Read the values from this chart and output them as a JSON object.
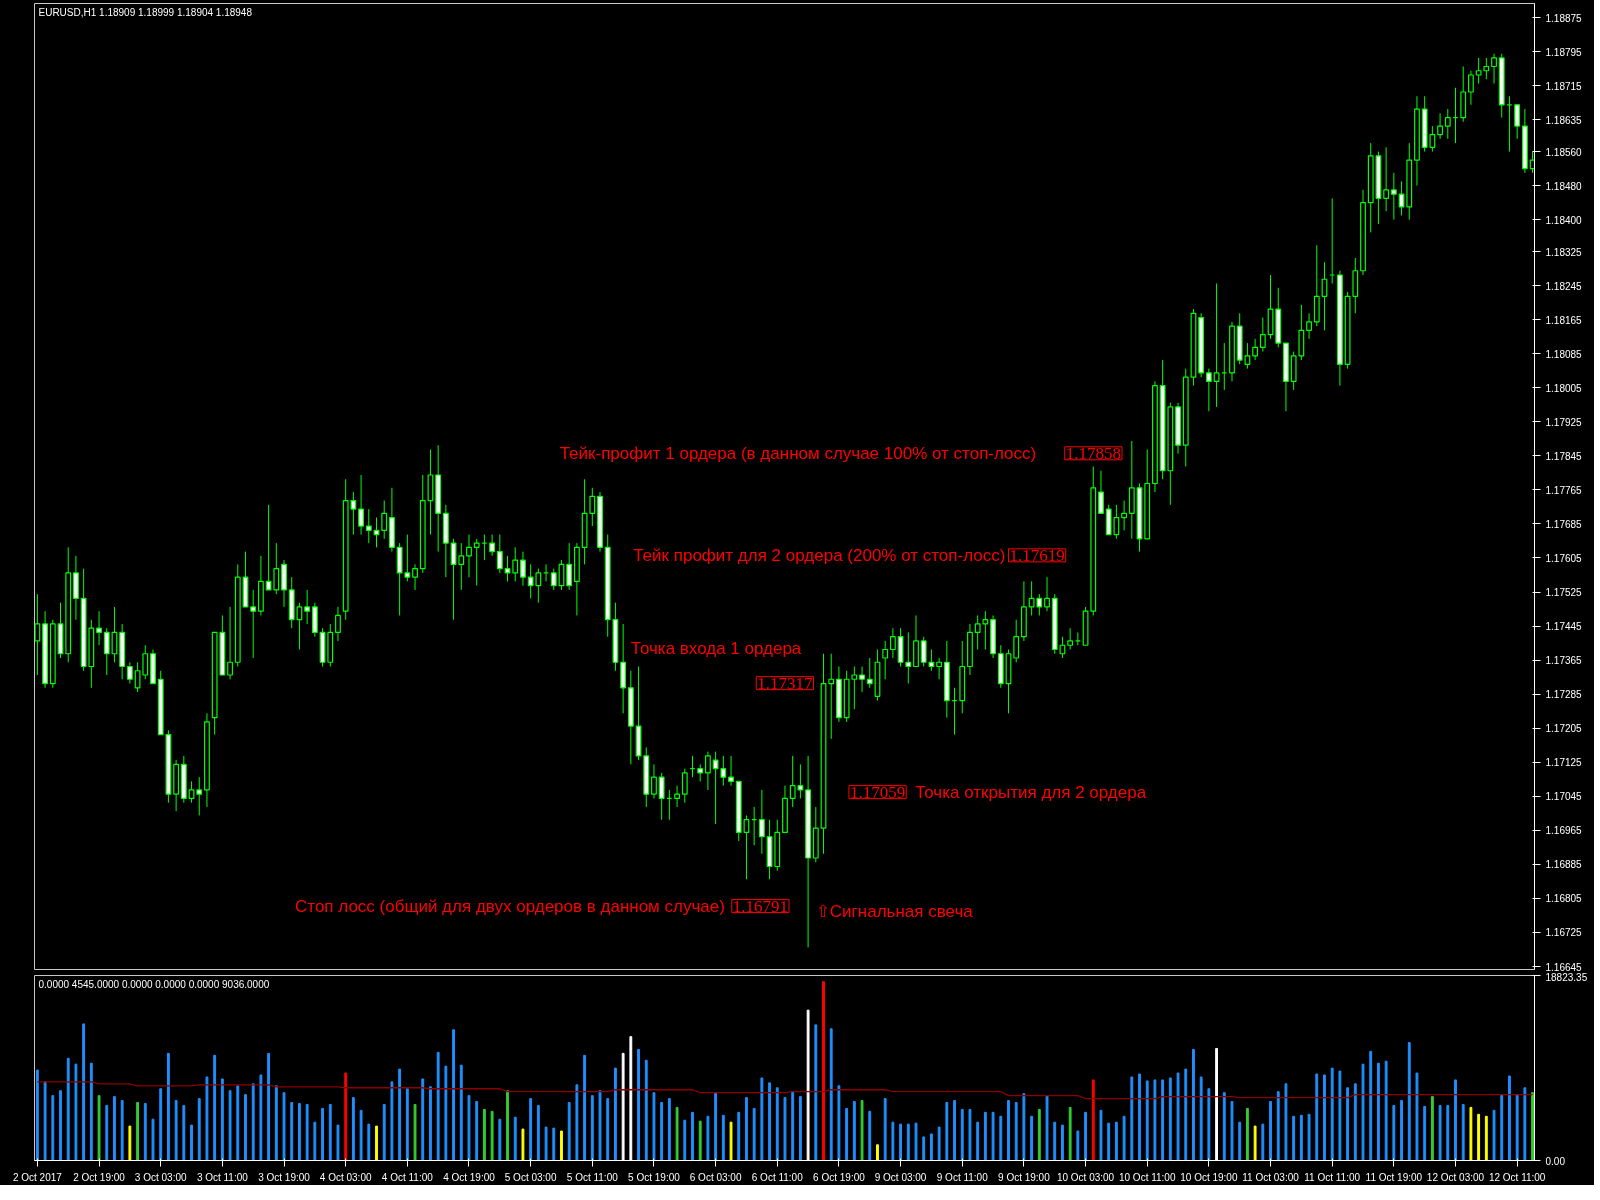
{
  "chart_data": [
    {
      "type": "candlestick",
      "title": "EURUSD,H1  1.18909 1.18999 1.18904 1.18948",
      "color": "#00ff00",
      "tick_labels": "y",
      "grid": false,
      "categories": [
        null,
        null,
        null,
        null,
        null,
        null,
        null,
        null,
        null,
        null,
        null,
        null,
        null,
        null,
        null,
        null,
        null,
        null,
        null,
        null,
        null,
        null,
        null,
        null,
        null,
        null,
        null,
        null,
        null,
        null,
        null,
        null,
        null,
        null,
        null,
        null,
        null,
        null,
        null,
        null,
        null,
        null,
        null,
        null,
        null,
        null,
        null,
        null,
        null,
        null,
        null,
        null,
        null,
        null,
        null,
        null,
        null,
        null,
        null,
        null,
        null,
        null,
        null,
        null,
        null,
        null,
        null,
        null,
        null,
        null,
        null,
        null,
        null,
        null,
        null,
        null,
        null,
        null,
        null,
        null,
        null,
        null,
        null,
        null,
        null,
        null,
        null,
        null,
        null,
        null,
        null,
        null,
        null,
        null,
        null,
        null,
        null,
        null,
        null,
        null,
        null,
        null,
        null,
        null,
        null,
        null,
        null,
        null,
        null,
        null,
        null,
        null,
        null,
        null,
        null,
        null,
        null,
        null,
        null,
        null,
        null,
        null,
        null,
        null,
        null,
        null,
        null,
        null,
        null,
        null,
        null,
        null,
        null,
        null,
        null,
        null,
        null,
        null,
        null,
        null,
        null,
        null,
        null,
        null,
        null,
        null,
        null,
        null,
        null,
        null,
        null,
        null,
        null,
        null,
        null,
        null,
        null,
        null,
        null,
        null,
        null,
        null,
        null,
        null,
        null,
        null,
        null,
        null,
        null,
        null,
        null,
        null,
        null,
        null,
        null,
        null,
        null,
        null,
        null,
        null,
        null,
        null,
        null,
        null,
        null,
        null,
        null,
        null,
        null,
        null,
        null,
        null,
        null,
        null,
        null
      ],
      "ylim": [
        1.16638,
        1.18908
      ],
      "yticks": [
        1.18875,
        1.18795,
        1.18715,
        1.18635,
        {
          "value": 1.1856,
          "label": "1.18560"
        },
        {
          "value": 1.1848,
          "label": "1.18480"
        },
        {
          "value": 1.184,
          "label": "1.18400"
        },
        1.18325,
        1.18245,
        1.18165,
        1.18085,
        1.18005,
        1.17925,
        1.17845,
        1.17765,
        1.17685,
        1.17605,
        1.17525,
        1.17445,
        1.17365,
        1.17285,
        1.17205,
        1.17125,
        1.17045,
        1.16965,
        1.16885,
        1.16805,
        1.16725,
        1.16645
      ],
      "ohlc": [
        [
          1.1741,
          1.1752,
          1.1733,
          1.1745
        ],
        [
          1.1745,
          1.1748,
          1.173,
          1.1731
        ],
        [
          1.1731,
          1.1746,
          1.173,
          1.1745
        ],
        [
          1.1745,
          1.175,
          1.1737,
          1.1738
        ],
        [
          1.1738,
          1.1763,
          1.1736,
          1.1757
        ],
        [
          1.1757,
          1.1761,
          1.1746,
          1.1751
        ],
        [
          1.1751,
          1.1758,
          1.1734,
          1.1735
        ],
        [
          1.1735,
          1.1746,
          1.173,
          1.1744
        ],
        [
          1.1744,
          1.1748,
          1.174,
          1.1743
        ],
        [
          1.1743,
          1.1744,
          1.1733,
          1.1738
        ],
        [
          1.1738,
          1.1749,
          1.1736,
          1.1743
        ],
        [
          1.1743,
          1.1745,
          1.1732,
          1.1735
        ],
        [
          1.1735,
          1.1736,
          1.1731,
          1.1732
        ],
        [
          1.173,
          1.1736,
          1.1729,
          1.1734
        ],
        [
          1.1733,
          1.174,
          1.1732,
          1.1738
        ],
        [
          1.1738,
          1.1739,
          1.1731,
          1.1731
        ],
        [
          1.1732,
          1.1734,
          1.1719,
          1.1719
        ],
        [
          1.1719,
          1.172,
          1.1703,
          1.1705
        ],
        [
          1.1705,
          1.1713,
          1.1701,
          1.1712
        ],
        [
          1.1712,
          1.1714,
          1.1703,
          1.1704
        ],
        [
          1.1704,
          1.1708,
          1.1703,
          1.1706
        ],
        [
          1.1706,
          1.1709,
          1.17,
          1.1705
        ],
        [
          1.1706,
          1.1724,
          1.1702,
          1.1722
        ],
        [
          1.1723,
          1.1743,
          1.1719,
          1.1743
        ],
        [
          1.1743,
          1.1747,
          1.1733,
          1.1733
        ],
        [
          1.1733,
          1.1749,
          1.1732,
          1.1736
        ],
        [
          1.1736,
          1.1759,
          1.1735,
          1.1756
        ],
        [
          1.1756,
          1.1762,
          1.1749,
          1.1749
        ],
        [
          1.1749,
          1.1753,
          1.1737,
          1.1748
        ],
        [
          1.1748,
          1.1761,
          1.1747,
          1.1755
        ],
        [
          1.1755,
          1.1773,
          1.1753,
          1.1753
        ],
        [
          1.1753,
          1.1764,
          1.1752,
          1.1758
        ],
        [
          1.1759,
          1.176,
          1.1749,
          1.1753
        ],
        [
          1.1753,
          1.1756,
          1.1744,
          1.1746
        ],
        [
          1.1746,
          1.175,
          1.1739,
          1.1749
        ],
        [
          1.1749,
          1.1753,
          1.1745,
          1.1748
        ],
        [
          1.1749,
          1.175,
          1.1742,
          1.1743
        ],
        [
          1.1743,
          1.1744,
          1.1735,
          1.1736
        ],
        [
          1.1736,
          1.1745,
          1.1735,
          1.1743
        ],
        [
          1.1743,
          1.1749,
          1.1741,
          1.1747
        ],
        [
          1.1748,
          1.1779,
          1.1746,
          1.1774
        ],
        [
          1.1774,
          1.1776,
          1.1766,
          1.1772
        ],
        [
          1.1772,
          1.178,
          1.1766,
          1.1768
        ],
        [
          1.1768,
          1.1772,
          1.1764,
          1.1767
        ],
        [
          1.1767,
          1.177,
          1.1763,
          1.1766
        ],
        [
          1.1767,
          1.1774,
          1.1765,
          1.1771
        ],
        [
          1.177,
          1.1777,
          1.1762,
          1.1763
        ],
        [
          1.1763,
          1.1764,
          1.1747,
          1.1757
        ],
        [
          1.1757,
          1.1766,
          1.1755,
          1.1756
        ],
        [
          1.1756,
          1.1759,
          1.1753,
          1.1758
        ],
        [
          1.1758,
          1.178,
          1.1757,
          1.1774
        ],
        [
          1.1774,
          1.1786,
          1.1766,
          1.178
        ],
        [
          1.178,
          1.1787,
          1.1762,
          1.1771
        ],
        [
          1.1771,
          1.1773,
          1.1756,
          1.1764
        ],
        [
          1.1764,
          1.1765,
          1.1746,
          1.1759
        ],
        [
          1.1759,
          1.1764,
          1.1753,
          1.1761
        ],
        [
          1.1761,
          1.1766,
          1.1756,
          1.1763
        ],
        [
          1.1763,
          1.1765,
          1.1754,
          1.1764
        ],
        [
          1.1764,
          1.1766,
          1.176,
          1.1764
        ],
        [
          1.1764,
          1.1766,
          1.1761,
          1.1762
        ],
        [
          1.1762,
          1.1766,
          1.1757,
          1.1758
        ],
        [
          1.1758,
          1.1761,
          1.1755,
          1.1757
        ],
        [
          1.1757,
          1.1763,
          1.1755,
          1.176
        ],
        [
          1.176,
          1.1762,
          1.1754,
          1.1756
        ],
        [
          1.1756,
          1.1759,
          1.1751,
          1.1754
        ],
        [
          1.1754,
          1.1758,
          1.175,
          1.1757
        ],
        [
          1.1757,
          1.1759,
          1.1755,
          1.1757
        ],
        [
          1.1757,
          1.1758,
          1.1753,
          1.1754
        ],
        [
          1.1754,
          1.176,
          1.1753,
          1.1759
        ],
        [
          1.1759,
          1.1764,
          1.1753,
          1.1754
        ],
        [
          1.1755,
          1.1764,
          1.1747,
          1.1763
        ],
        [
          1.1763,
          1.1779,
          1.1759,
          1.1771
        ],
        [
          1.1771,
          1.1777,
          1.1768,
          1.1775
        ],
        [
          1.1775,
          1.1776,
          1.1762,
          1.1763
        ],
        [
          1.1763,
          1.1766,
          1.1742,
          1.1746
        ],
        [
          1.1746,
          1.175,
          1.1734,
          1.1736
        ],
        [
          1.1736,
          1.1745,
          1.1724,
          1.173
        ],
        [
          1.173,
          1.1734,
          1.1712,
          1.1721
        ],
        [
          1.1721,
          1.1735,
          1.1713,
          1.1714
        ],
        [
          1.1714,
          1.1716,
          1.1702,
          1.1705
        ],
        [
          1.1705,
          1.1712,
          1.1704,
          1.1709
        ],
        [
          1.1709,
          1.171,
          1.1699,
          1.1704
        ],
        [
          1.1704,
          1.1706,
          1.1699,
          1.1704
        ],
        [
          1.1704,
          1.1707,
          1.1702,
          1.1705
        ],
        [
          1.1705,
          1.1711,
          1.1703,
          1.171
        ],
        [
          1.1711,
          1.1714,
          1.1709,
          1.1711
        ],
        [
          1.1711,
          1.1712,
          1.1708,
          1.171
        ],
        [
          1.171,
          1.1715,
          1.1706,
          1.1714
        ],
        [
          1.1713,
          1.1715,
          1.1698,
          1.1711
        ],
        [
          1.1711,
          1.1714,
          1.1707,
          1.1709
        ],
        [
          1.1709,
          1.1714,
          1.1707,
          1.1708
        ],
        [
          1.1708,
          1.1708,
          1.1694,
          1.1696
        ],
        [
          1.1696,
          1.17,
          1.1685,
          1.1699
        ],
        [
          1.1699,
          1.1702,
          1.1693,
          1.1699
        ],
        [
          1.1699,
          1.1706,
          1.1691,
          1.1695
        ],
        [
          1.1695,
          1.1699,
          1.1685,
          1.1688
        ],
        [
          1.1688,
          1.1699,
          1.1687,
          1.1696
        ],
        [
          1.1696,
          1.1707,
          1.1696,
          1.1704
        ],
        [
          1.1704,
          1.1714,
          1.1702,
          1.1707
        ],
        [
          1.1707,
          1.1712,
          1.1704,
          1.1706
        ],
        [
          1.1706,
          1.1714,
          1.1669,
          1.169
        ],
        [
          1.169,
          1.1702,
          1.1689,
          1.1697
        ],
        [
          1.1697,
          1.1738,
          1.1691,
          1.1731
        ],
        [
          1.1731,
          1.1738,
          1.1718,
          1.1732
        ],
        [
          1.1732,
          1.1735,
          1.1722,
          1.1723
        ],
        [
          1.1723,
          1.1734,
          1.1722,
          1.1732
        ],
        [
          1.1732,
          1.1735,
          1.1725,
          1.1733
        ],
        [
          1.1733,
          1.1735,
          1.1729,
          1.1732
        ],
        [
          1.1732,
          1.1737,
          1.173,
          1.1731
        ],
        [
          1.1728,
          1.1739,
          1.1727,
          1.1736
        ],
        [
          1.1737,
          1.1741,
          1.1732,
          1.1739
        ],
        [
          1.1739,
          1.1744,
          1.1737,
          1.1742
        ],
        [
          1.1742,
          1.1744,
          1.1735,
          1.1736
        ],
        [
          1.1736,
          1.1743,
          1.1731,
          1.1735
        ],
        [
          1.1735,
          1.1747,
          1.1735,
          1.1741
        ],
        [
          1.1741,
          1.1742,
          1.1735,
          1.1736
        ],
        [
          1.1736,
          1.1739,
          1.1734,
          1.1735
        ],
        [
          1.1735,
          1.1737,
          1.1732,
          1.1736
        ],
        [
          1.1736,
          1.1741,
          1.1723,
          1.1727
        ],
        [
          1.1727,
          1.173,
          1.1719,
          1.1727
        ],
        [
          1.1727,
          1.1741,
          1.1724,
          1.1735
        ],
        [
          1.1735,
          1.1745,
          1.1733,
          1.1743
        ],
        [
          1.1743,
          1.1747,
          1.1739,
          1.1745
        ],
        [
          1.1745,
          1.1748,
          1.1739,
          1.1746
        ],
        [
          1.1746,
          1.1747,
          1.1737,
          1.1738
        ],
        [
          1.1738,
          1.174,
          1.173,
          1.1731
        ],
        [
          1.1731,
          1.1739,
          1.1724,
          1.1738
        ],
        [
          1.1737,
          1.1746,
          1.1736,
          1.1742
        ],
        [
          1.1742,
          1.1755,
          1.1741,
          1.1749
        ],
        [
          1.1749,
          1.1755,
          1.1747,
          1.1751
        ],
        [
          1.1751,
          1.1752,
          1.1747,
          1.1749
        ],
        [
          1.1749,
          1.1756,
          1.1748,
          1.1751
        ],
        [
          1.1751,
          1.1752,
          1.1738,
          1.1739
        ],
        [
          1.1738,
          1.1742,
          1.1737,
          1.174
        ],
        [
          1.174,
          1.1744,
          1.1739,
          1.1741
        ],
        [
          1.1741,
          1.1743,
          1.174,
          1.1741
        ],
        [
          1.174,
          1.1749,
          1.174,
          1.1748
        ],
        [
          1.1748,
          1.1782,
          1.1747,
          1.1777
        ],
        [
          1.1776,
          1.1781,
          1.1771,
          1.1771
        ],
        [
          1.1772,
          1.1773,
          1.1766,
          1.1766
        ],
        [
          1.1766,
          1.1773,
          1.1765,
          1.177
        ],
        [
          1.177,
          1.1774,
          1.1767,
          1.1771
        ],
        [
          1.1771,
          1.1788,
          1.1765,
          1.1777
        ],
        [
          1.1777,
          1.1778,
          1.1762,
          1.1765
        ],
        [
          1.1765,
          1.1786,
          1.1765,
          1.1778
        ],
        [
          1.1778,
          1.1802,
          1.1776,
          1.1801
        ],
        [
          1.1801,
          1.1807,
          1.1779,
          1.1781
        ],
        [
          1.1781,
          1.1797,
          1.1773,
          1.1796
        ],
        [
          1.1796,
          1.1797,
          1.1785,
          1.1787
        ],
        [
          1.1787,
          1.1805,
          1.1782,
          1.1803
        ],
        [
          1.1803,
          1.1819,
          1.1801,
          1.1818
        ],
        [
          1.1817,
          1.1818,
          1.1803,
          1.1804
        ],
        [
          1.1804,
          1.1805,
          1.1795,
          1.1802
        ],
        [
          1.1802,
          1.1825,
          1.1796,
          1.1804
        ],
        [
          1.1804,
          1.1811,
          1.18,
          1.1804
        ],
        [
          1.1804,
          1.1816,
          1.1802,
          1.1815
        ],
        [
          1.1815,
          1.1818,
          1.1806,
          1.1807
        ],
        [
          1.1806,
          1.1811,
          1.1805,
          1.1808
        ],
        [
          1.1808,
          1.1812,
          1.1807,
          1.181
        ],
        [
          1.181,
          1.1817,
          1.1809,
          1.1813
        ],
        [
          1.1813,
          1.1827,
          1.1812,
          1.1819
        ],
        [
          1.1819,
          1.1824,
          1.181,
          1.1811
        ],
        [
          1.1811,
          1.1811,
          1.1795,
          1.1802
        ],
        [
          1.1802,
          1.1809,
          1.18,
          1.1808
        ],
        [
          1.1808,
          1.182,
          1.1807,
          1.1814
        ],
        [
          1.1814,
          1.1818,
          1.1812,
          1.1816
        ],
        [
          1.1816,
          1.1834,
          1.1815,
          1.1822
        ],
        [
          1.1822,
          1.183,
          1.1814,
          1.1826
        ],
        [
          1.1827,
          1.1845,
          1.1825,
          1.1827
        ],
        [
          1.1827,
          1.1828,
          1.1801,
          1.1806
        ],
        [
          1.1806,
          1.1823,
          1.1805,
          1.1822
        ],
        [
          1.1822,
          1.1831,
          1.1818,
          1.1828
        ],
        [
          1.1828,
          1.1847,
          1.1827,
          1.1844
        ],
        [
          1.1844,
          1.1858,
          1.1837,
          1.1855
        ],
        [
          1.1855,
          1.1856,
          1.1839,
          1.1845
        ],
        [
          1.1845,
          1.1857,
          1.1842,
          1.1847
        ],
        [
          1.1847,
          1.1851,
          1.184,
          1.1846
        ],
        [
          1.1846,
          1.1849,
          1.1841,
          1.1843
        ],
        [
          1.1843,
          1.1858,
          1.184,
          1.1854
        ],
        [
          1.1854,
          1.1869,
          1.1848,
          1.1866
        ],
        [
          1.1866,
          1.1869,
          1.1856,
          1.1857
        ],
        [
          1.1857,
          1.1862,
          1.1856,
          1.186
        ],
        [
          1.186,
          1.1865,
          1.1859,
          1.1862
        ],
        [
          1.1862,
          1.1866,
          1.1859,
          1.1864
        ],
        [
          1.1864,
          1.1871,
          1.1858,
          1.1864
        ],
        [
          1.1864,
          1.1876,
          1.1863,
          1.187
        ],
        [
          1.187,
          1.1875,
          1.1867,
          1.1874
        ],
        [
          1.1874,
          1.1878,
          1.1872,
          1.1875
        ],
        [
          1.1875,
          1.1878,
          1.1873,
          1.1876
        ],
        [
          1.1876,
          1.1879,
          1.1872,
          1.1878
        ],
        [
          1.1878,
          1.1879,
          1.1864,
          1.1867
        ],
        [
          1.1867,
          1.1869,
          1.1856,
          1.1867
        ],
        [
          1.1867,
          1.1867,
          1.1859,
          1.1862
        ],
        [
          1.1862,
          1.1866,
          1.1851,
          1.1852
        ],
        [
          1.1852,
          1.1856,
          1.1851,
          1.1854
        ]
      ],
      "annotations": [
        "Тейк-профит 1 ордера (в данном случае 100% от стоп-лосс)",
        "1.17858",
        "Тейк профит для 2 ордера (200% от стоп-лосс)",
        "1.17619",
        "Точка входа 1 ордера",
        "1.17317",
        "1.17059",
        "Точка открытия для 2 ордера",
        "Стоп лосс (общий для двух ордеров в данном случае)",
        "1.16791",
        "⇧Сигнальная свеча"
      ]
    },
    {
      "type": "bar",
      "title": "0.0000 4545.0000 0.0000 0.0000 0.0000 9036.0000",
      "grid": false,
      "categories": [
        "2 Oct 2017",
        null,
        null,
        null,
        null,
        null,
        null,
        null,
        "2 Oct 19:00",
        null,
        null,
        null,
        null,
        null,
        null,
        null,
        "3 Oct 03:00",
        null,
        null,
        null,
        null,
        null,
        null,
        null,
        "3 Oct 11:00",
        null,
        null,
        null,
        null,
        null,
        null,
        null,
        "3 Oct 19:00",
        null,
        null,
        null,
        null,
        null,
        null,
        null,
        "4 Oct 03:00",
        null,
        null,
        null,
        null,
        null,
        null,
        null,
        "4 Oct 11:00",
        null,
        null,
        null,
        null,
        null,
        null,
        null,
        "4 Oct 19:00",
        null,
        null,
        null,
        null,
        null,
        null,
        null,
        "5 Oct 03:00",
        null,
        null,
        null,
        null,
        null,
        null,
        null,
        "5 Oct 11:00",
        null,
        null,
        null,
        null,
        null,
        null,
        null,
        "5 Oct 19:00",
        null,
        null,
        null,
        null,
        null,
        null,
        null,
        "6 Oct 03:00",
        null,
        null,
        null,
        null,
        null,
        null,
        null,
        "6 Oct 11:00",
        null,
        null,
        null,
        null,
        null,
        null,
        null,
        "6 Oct 19:00",
        null,
        null,
        null,
        null,
        null,
        null,
        null,
        "9 Oct 03:00",
        null,
        null,
        null,
        null,
        null,
        null,
        null,
        "9 Oct 11:00",
        null,
        null,
        null,
        null,
        null,
        null,
        null,
        "9 Oct 19:00",
        null,
        null,
        null,
        null,
        null,
        null,
        null,
        "10 Oct 03:00",
        null,
        null,
        null,
        null,
        null,
        null,
        null,
        "10 Oct 11:00",
        null,
        null,
        null,
        null,
        null,
        null,
        null,
        "10 Oct 19:00",
        null,
        null,
        null,
        null,
        null,
        null,
        null,
        "11 Oct 03:00",
        null,
        null,
        null,
        null,
        null,
        null,
        null,
        "11 Oct 11:00",
        null,
        null,
        null,
        null,
        null,
        null,
        null,
        "11 Oct 19:00",
        null,
        null,
        null,
        null,
        null,
        null,
        null,
        "12 Oct 03:00",
        null,
        null,
        null,
        null,
        null,
        null,
        null,
        "12 Oct 11:00",
        null,
        null
      ],
      "ylim": [
        0,
        18823.35
      ],
      "yticks": [
        {
          "value": 0,
          "label": "0.00"
        },
        18823.35
      ],
      "series": [
        {
          "type": "bar",
          "values": [
            9200,
            8000,
            6600,
            7100,
            10400,
            9800,
            13900,
            9900,
            6600,
            5600,
            6500,
            6100,
            3500,
            5900,
            5800,
            4200,
            7300,
            10900,
            6100,
            5600,
            3600,
            6300,
            8500,
            10700,
            8300,
            7100,
            7600,
            6700,
            7800,
            8700,
            10900,
            7600,
            6900,
            5900,
            5800,
            5700,
            3900,
            5300,
            5700,
            3600,
            8900,
            6400,
            5100,
            3700,
            3500,
            5700,
            8000,
            9300,
            7300,
            5700,
            8300,
            7500,
            11000,
            9600,
            13300,
            9700,
            6600,
            6000,
            5200,
            5000,
            4200,
            7100,
            4400,
            3200,
            6300,
            5600,
            3400,
            3300,
            3000,
            5900,
            7700,
            10700,
            6600,
            7100,
            6300,
            9400,
            10900,
            12600,
            11300,
            10200,
            6900,
            5900,
            6300,
            5400,
            4100,
            4900,
            4000,
            4500,
            6900,
            4600,
            3900,
            4900,
            6400,
            5300,
            8400,
            7900,
            7400,
            6400,
            7000,
            6500,
            15300,
            13800,
            18200,
            13400,
            7600,
            5300,
            6000,
            6100,
            5000,
            1600,
            6300,
            3900,
            3700,
            3700,
            3800,
            2400,
            2700,
            3400,
            5900,
            6100,
            5200,
            5200,
            3900,
            4900,
            4900,
            4500,
            6100,
            5900,
            6800,
            4500,
            5200,
            6600,
            3900,
            3600,
            5400,
            3000,
            4900,
            8200,
            5100,
            3800,
            3900,
            4500,
            8500,
            8800,
            8100,
            8200,
            8200,
            8400,
            8900,
            9300,
            11300,
            8500,
            7300,
            11400,
            6900,
            6000,
            3900,
            5300,
            3500,
            3700,
            6000,
            7000,
            7800,
            4500,
            4600,
            4700,
            8800,
            8700,
            9400,
            9100,
            7400,
            7800,
            9800,
            11100,
            9900,
            10100,
            5600,
            6100,
            12000,
            8900,
            5500,
            6500,
            5600,
            5600,
            8200,
            5700,
            5400,
            4700,
            4500,
            5100,
            6700,
            8600,
            6700,
            7400,
            6900
          ],
          "colors": [
            "#1e90ff",
            "#1e90ff",
            "#1e90ff",
            "#1e90ff",
            "#1e90ff",
            "#1e90ff",
            "#1e90ff",
            "#1e90ff",
            "#32cd32",
            "#1e90ff",
            "#1e90ff",
            "#1e90ff",
            "#ffff00",
            "#32cd32",
            "#1e90ff",
            "#1e90ff",
            "#1e90ff",
            "#1e90ff",
            "#1e90ff",
            "#1e90ff",
            "#1e90ff",
            "#1e90ff",
            "#1e90ff",
            "#1e90ff",
            "#1e90ff",
            "#1e90ff",
            "#1e90ff",
            "#1e90ff",
            "#1e90ff",
            "#1e90ff",
            "#1e90ff",
            "#1e90ff",
            "#1e90ff",
            "#1e90ff",
            "#1e90ff",
            "#1e90ff",
            "#1e90ff",
            "#1e90ff",
            "#1e90ff",
            "#1e90ff",
            "#ff0000",
            "#1e90ff",
            "#1e90ff",
            "#1e90ff",
            "#ffff00",
            "#1e90ff",
            "#1e90ff",
            "#1e90ff",
            "#1e90ff",
            "#32cd32",
            "#1e90ff",
            "#1e90ff",
            "#1e90ff",
            "#1e90ff",
            "#1e90ff",
            "#1e90ff",
            "#1e90ff",
            "#1e90ff",
            "#32cd32",
            "#32cd32",
            "#1e90ff",
            "#32cd32",
            "#1e90ff",
            "#ffff00",
            "#1e90ff",
            "#1e90ff",
            "#1e90ff",
            "#1e90ff",
            "#ffff00",
            "#1e90ff",
            "#1e90ff",
            "#1e90ff",
            "#1e90ff",
            "#1e90ff",
            "#1e90ff",
            "#1e90ff",
            "#ffffff",
            "#ffffff",
            "#1e90ff",
            "#1e90ff",
            "#1e90ff",
            "#1e90ff",
            "#1e90ff",
            "#32cd32",
            "#1e90ff",
            "#1e90ff",
            "#32cd32",
            "#1e90ff",
            "#1e90ff",
            "#1e90ff",
            "#ffff00",
            "#1e90ff",
            "#1e90ff",
            "#1e90ff",
            "#1e90ff",
            "#1e90ff",
            "#1e90ff",
            "#1e90ff",
            "#1e90ff",
            "#1e90ff",
            "#ffffff",
            "#1e90ff",
            "#ff0000",
            "#1e90ff",
            "#1e90ff",
            "#1e90ff",
            "#1e90ff",
            "#32cd32",
            "#1e90ff",
            "#ffff00",
            "#1e90ff",
            "#1e90ff",
            "#1e90ff",
            "#1e90ff",
            "#1e90ff",
            "#1e90ff",
            "#1e90ff",
            "#1e90ff",
            "#1e90ff",
            "#1e90ff",
            "#1e90ff",
            "#1e90ff",
            "#1e90ff",
            "#1e90ff",
            "#1e90ff",
            "#1e90ff",
            "#1e90ff",
            "#1e90ff",
            "#1e90ff",
            "#1e90ff",
            "#32cd32",
            "#1e90ff",
            "#1e90ff",
            "#1e90ff",
            "#32cd32",
            "#1e90ff",
            "#1e90ff",
            "#ff0000",
            "#1e90ff",
            "#1e90ff",
            "#1e90ff",
            "#1e90ff",
            "#1e90ff",
            "#1e90ff",
            "#1e90ff",
            "#1e90ff",
            "#1e90ff",
            "#1e90ff",
            "#1e90ff",
            "#1e90ff",
            "#1e90ff",
            "#1e90ff",
            "#1e90ff",
            "#ffffff",
            "#1e90ff",
            "#1e90ff",
            "#1e90ff",
            "#32cd32",
            "#ffff00",
            "#1e90ff",
            "#1e90ff",
            "#1e90ff",
            "#1e90ff",
            "#1e90ff",
            "#1e90ff",
            "#1e90ff",
            "#1e90ff",
            "#1e90ff",
            "#1e90ff",
            "#1e90ff",
            "#1e90ff",
            "#1e90ff",
            "#1e90ff",
            "#1e90ff",
            "#1e90ff",
            "#1e90ff",
            "#1e90ff",
            "#1e90ff",
            "#1e90ff",
            "#1e90ff",
            "#1e90ff",
            "#32cd32",
            "#1e90ff",
            "#1e90ff",
            "#1e90ff",
            "#1e90ff",
            "#ffff00",
            "#ffff00",
            "#ffff00",
            "#1e90ff",
            "#1e90ff",
            "#1e90ff",
            "#1e90ff",
            "#1e90ff",
            "#32cd32"
          ]
        },
        {
          "type": "line",
          "color": "#8b0000",
          "values": [
            8000,
            8000,
            8000,
            8000,
            8000,
            8000,
            8000,
            8000,
            7800,
            7800,
            7800,
            7800,
            7800,
            7600,
            7600,
            7600,
            7600,
            7600,
            7600,
            7600,
            7600,
            7700,
            7700,
            7700,
            7700,
            7700,
            7700,
            7700,
            7700,
            7700,
            7700,
            7500,
            7500,
            7500,
            7500,
            7500,
            7500,
            7500,
            7500,
            7500,
            7400,
            7400,
            7400,
            7400,
            7400,
            7400,
            7400,
            7400,
            7400,
            7400,
            7400,
            7300,
            7300,
            7300,
            7300,
            7300,
            7300,
            7300,
            7300,
            7300,
            7300,
            7000,
            7000,
            7000,
            7000,
            7000,
            7000,
            7000,
            7000,
            7000,
            7000,
            7000,
            7000,
            7000,
            7000,
            7200,
            7200,
            7200,
            7200,
            7200,
            7200,
            7200,
            7200,
            7200,
            7200,
            7200,
            6900,
            6900,
            6900,
            6900,
            6900,
            6900,
            6900,
            6900,
            6900,
            6900,
            6900,
            6900,
            7000,
            7000,
            7000,
            7000,
            7000,
            7200,
            7200,
            7200,
            7200,
            7200,
            7200,
            7200,
            7200,
            7000,
            7000,
            7000,
            7000,
            7000,
            7000,
            7000,
            7000,
            7000,
            7000,
            7000,
            7000,
            7000,
            7000,
            7000,
            6600,
            6600,
            6600,
            6600,
            6600,
            6600,
            6600,
            6600,
            6600,
            6600,
            6300,
            6300,
            6300,
            6300,
            6300,
            6300,
            6300,
            6300,
            6300,
            6300,
            6500,
            6500,
            6500,
            6500,
            6500,
            6500,
            6500,
            6500,
            6500,
            6500,
            6400,
            6400,
            6400,
            6400,
            6400,
            6400,
            6400,
            6400,
            6400,
            6400,
            6400,
            6400,
            6400,
            6400,
            6400,
            6700,
            6700,
            6700,
            6700,
            6700,
            6700,
            6700,
            6700,
            6700,
            6700,
            6700,
            6700,
            6700,
            6700,
            6700,
            6700,
            6700,
            6700,
            6700,
            6700,
            6700,
            6700,
            6700,
            6700
          ]
        }
      ]
    }
  ]
}
